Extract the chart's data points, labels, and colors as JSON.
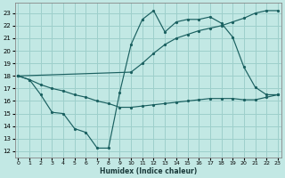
{
  "xlabel": "Humidex (Indice chaleur)",
  "bg_color": "#c2e8e4",
  "grid_color": "#9dcfcb",
  "line_color": "#1a6060",
  "x_ticks": [
    0,
    1,
    2,
    3,
    4,
    5,
    6,
    7,
    8,
    9,
    10,
    11,
    12,
    13,
    14,
    15,
    16,
    17,
    18,
    19,
    20,
    21,
    22,
    23
  ],
  "y_ticks": [
    12,
    13,
    14,
    15,
    16,
    17,
    18,
    19,
    20,
    21,
    22,
    23
  ],
  "xlim": [
    -0.3,
    23.3
  ],
  "ylim": [
    11.5,
    23.8
  ],
  "line1_x": [
    0,
    1,
    2,
    3,
    4,
    5,
    6,
    7,
    8,
    9,
    10,
    11,
    12,
    13,
    14,
    15,
    16,
    17,
    18,
    19,
    20,
    21,
    22,
    23
  ],
  "line1_y": [
    18.0,
    17.7,
    16.5,
    15.1,
    15.0,
    13.8,
    13.5,
    12.25,
    12.25,
    16.7,
    20.5,
    22.5,
    23.2,
    21.5,
    22.3,
    22.5,
    22.5,
    22.7,
    22.2,
    21.1,
    18.7,
    17.1,
    16.5,
    16.5
  ],
  "line2_x": [
    0,
    1,
    2,
    3,
    4,
    5,
    6,
    7,
    8,
    9,
    10,
    11,
    12,
    13,
    14,
    15,
    16,
    17,
    18,
    19,
    20,
    21,
    22,
    23
  ],
  "line2_y": [
    18.0,
    17.7,
    17.3,
    17.0,
    16.8,
    16.5,
    16.3,
    16.0,
    15.8,
    15.5,
    15.5,
    15.6,
    15.7,
    15.8,
    15.9,
    16.0,
    16.1,
    16.2,
    16.2,
    16.2,
    16.1,
    16.1,
    16.3,
    16.5
  ],
  "line3_x": [
    0,
    10,
    11,
    12,
    13,
    14,
    15,
    16,
    17,
    18,
    19,
    20,
    21,
    22,
    23
  ],
  "line3_y": [
    18.0,
    18.3,
    19.0,
    19.8,
    20.5,
    21.0,
    21.3,
    21.6,
    21.8,
    22.0,
    22.3,
    22.6,
    23.0,
    23.2,
    23.2
  ]
}
